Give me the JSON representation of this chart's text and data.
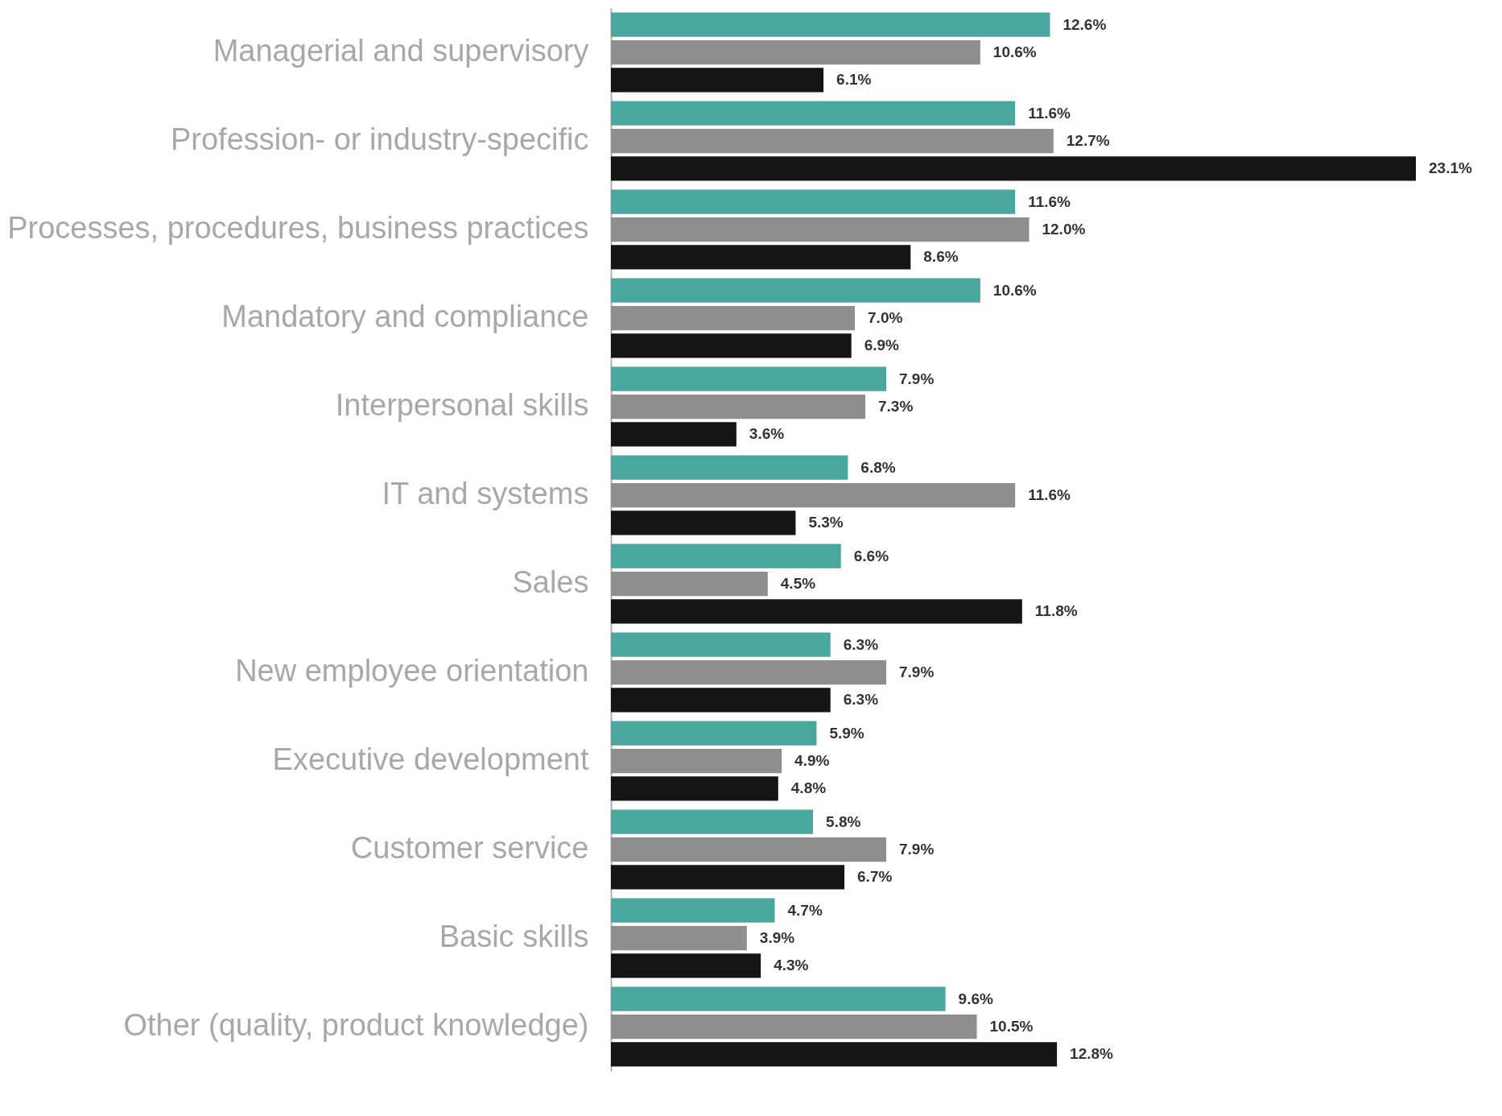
{
  "chart_data": {
    "type": "bar",
    "orientation": "horizontal",
    "categories": [
      "Managerial and supervisory",
      "Profession- or industry-specific",
      "Processes, procedures, business practices",
      "Mandatory and compliance",
      "Interpersonal skills",
      "IT and systems",
      "Sales",
      "New employee orientation",
      "Executive development",
      "Customer service",
      "Basic skills",
      "Other (quality, product knowledge)"
    ],
    "series": [
      {
        "color": "#4aa79f",
        "values": [
          12.6,
          11.6,
          11.6,
          10.6,
          7.9,
          6.8,
          6.6,
          6.3,
          5.9,
          5.8,
          4.7,
          9.6
        ],
        "value_labels": [
          "12.6%",
          "11.6%",
          "11.6%",
          "10.6%",
          "7.9%",
          "6.8%",
          "6.6%",
          "6.3%",
          "5.9%",
          "5.8%",
          "4.7%",
          "9.6%"
        ]
      },
      {
        "color": "#8e8e8e",
        "values": [
          10.6,
          12.7,
          12.0,
          7.0,
          7.3,
          11.6,
          4.5,
          7.9,
          4.9,
          7.9,
          3.9,
          10.5
        ],
        "value_labels": [
          "10.6%",
          "12.7%",
          "12.0%",
          "7.0%",
          "7.3%",
          "11.6%",
          "4.5%",
          "7.9%",
          "4.9%",
          "7.9%",
          "3.9%",
          "10.5%"
        ]
      },
      {
        "color": "#151515",
        "values": [
          6.1,
          23.1,
          8.6,
          6.9,
          3.6,
          5.3,
          11.8,
          6.3,
          4.8,
          6.7,
          4.3,
          12.8
        ],
        "value_labels": [
          "6.1%",
          "23.1%",
          "8.6%",
          "6.9%",
          "3.6%",
          "5.3%",
          "11.8%",
          "6.3%",
          "4.8%",
          "6.7%",
          "4.3%",
          "12.8%"
        ]
      }
    ],
    "tick_labels": "y",
    "legend": false
  }
}
